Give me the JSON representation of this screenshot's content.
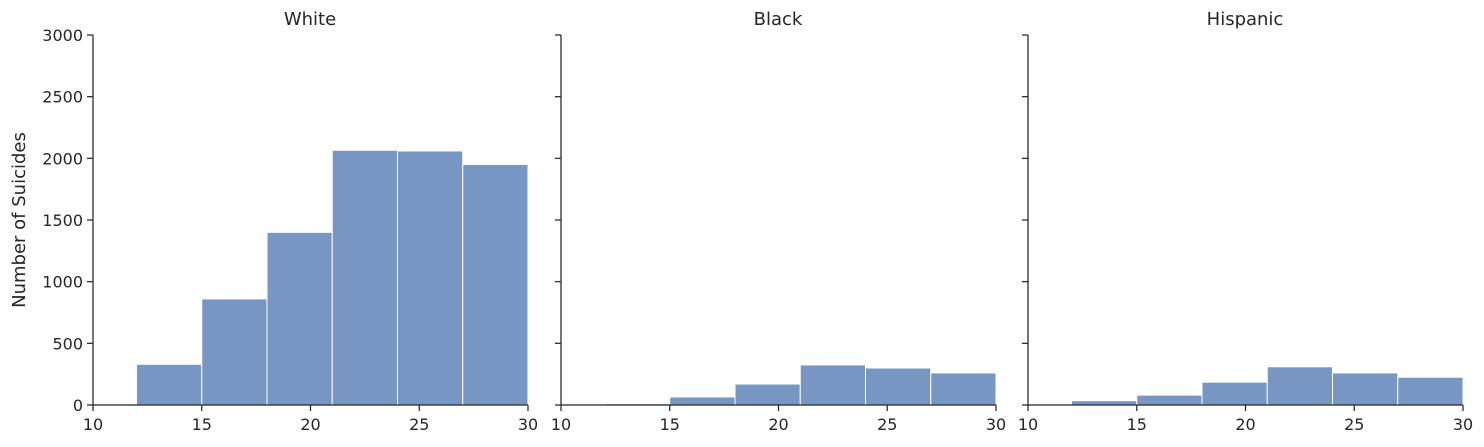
{
  "chart_data": {
    "type": "bar",
    "chart_kind": "histogram facet grid",
    "ylabel": "Number of Suicides",
    "ylim": [
      0,
      3000
    ],
    "yticks": [
      "0",
      "500",
      "1000",
      "1500",
      "2000",
      "2500",
      "3000"
    ],
    "xlim": [
      10,
      30
    ],
    "xticks": [
      "10",
      "15",
      "20",
      "25",
      "30"
    ],
    "bin_edges": [
      12,
      15,
      18,
      21,
      24,
      27,
      30
    ],
    "bar_color": "#7896c4",
    "panels": [
      {
        "title": "White",
        "values": [
          330,
          860,
          1400,
          2065,
          2060,
          1950
        ]
      },
      {
        "title": "Black",
        "values": [
          10,
          65,
          170,
          325,
          300,
          260
        ]
      },
      {
        "title": "Hispanic",
        "values": [
          35,
          80,
          185,
          310,
          260,
          225
        ]
      }
    ]
  }
}
